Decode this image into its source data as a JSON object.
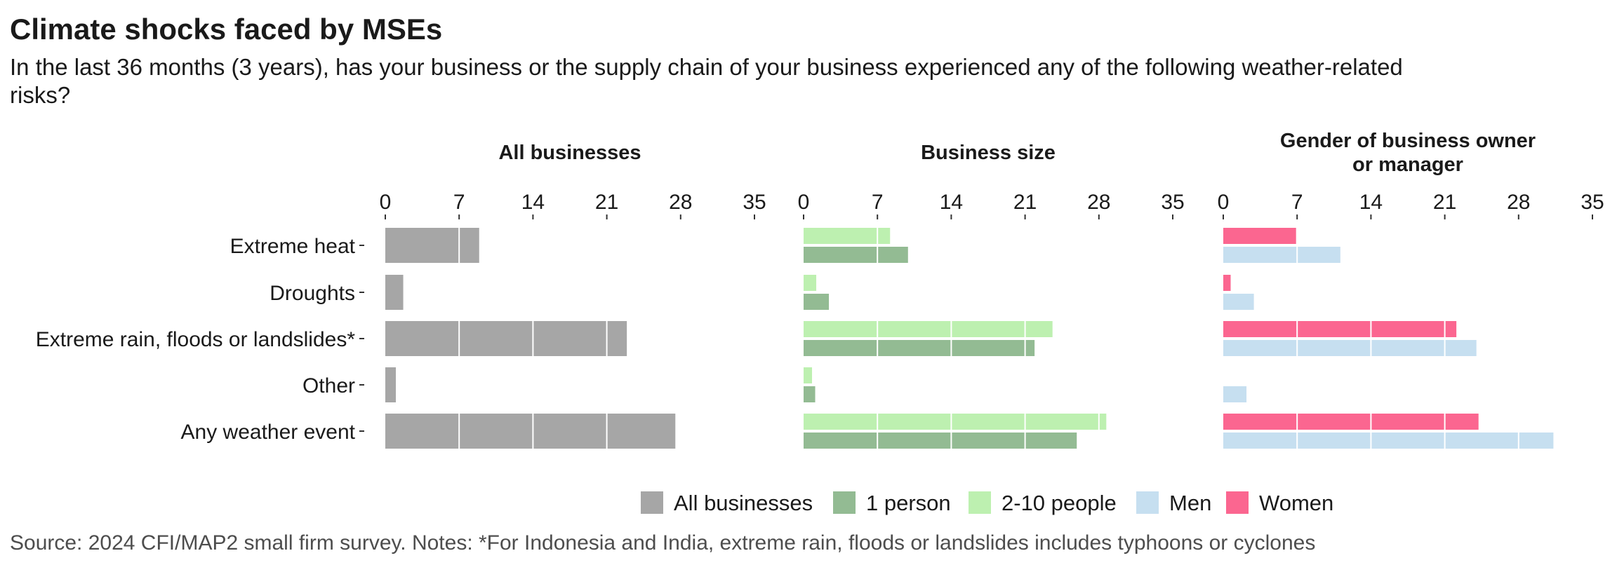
{
  "title": "Climate shocks faced by MSEs",
  "subtitle": "In the last 36 months (3 years), has your business or the supply chain of your business experienced any of the following weather-related risks?",
  "caption": "Source: 2024 CFI/MAP2 small firm survey. Notes: *For Indonesia and India, extreme rain, floods or landslides includes typhoons or cyclones",
  "colors": {
    "All businesses": "#a6a6a6",
    "1 person": "#93bb93",
    "2-10 people": "#bdf0b0",
    "Men": "#c6dff0",
    "Women": "#fb6690"
  },
  "chart_data": {
    "type": "bar",
    "orientation": "horizontal",
    "categories": [
      "Extreme heat",
      "Droughts",
      "Extreme rain, floods or landslides*",
      "Other",
      "Any weather event"
    ],
    "xlim": [
      0,
      35
    ],
    "xticks": [
      0,
      7,
      14,
      21,
      28,
      35
    ],
    "grid": true,
    "legend_position": "bottom",
    "legend": [
      "All businesses",
      "1 person",
      "2-10 people",
      "Men",
      "Women"
    ],
    "panels": [
      {
        "title": "All businesses",
        "series": [
          {
            "name": "All businesses",
            "values": [
              8.9,
              1.7,
              22.9,
              1.0,
              27.5
            ]
          }
        ]
      },
      {
        "title": "Business size",
        "series": [
          {
            "name": "2-10 people",
            "values": [
              8.2,
              1.2,
              23.6,
              0.8,
              28.7
            ]
          },
          {
            "name": "1 person",
            "values": [
              9.9,
              2.4,
              21.9,
              1.1,
              25.9
            ]
          }
        ]
      },
      {
        "title": "Gender of business owner or manager",
        "series": [
          {
            "name": "Women",
            "values": [
              6.9,
              0.7,
              22.1,
              0.0,
              24.2
            ]
          },
          {
            "name": "Men",
            "values": [
              11.1,
              2.9,
              24.0,
              2.2,
              31.3
            ]
          }
        ]
      }
    ]
  }
}
